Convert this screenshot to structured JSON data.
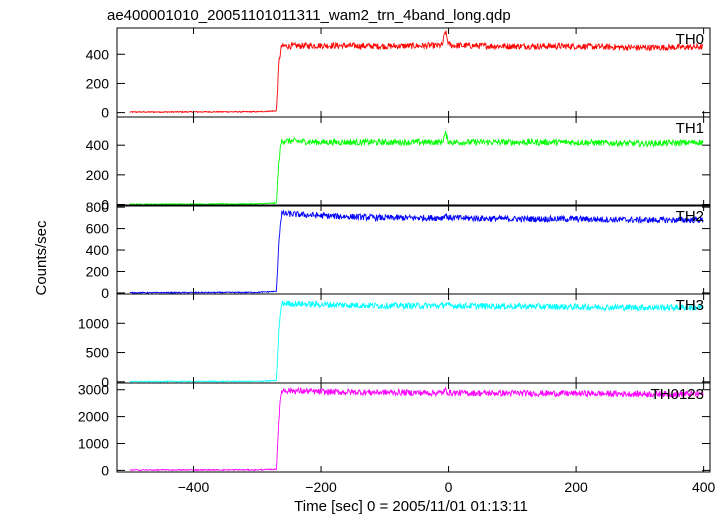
{
  "chart_data": {
    "type": "line",
    "title": "ae400001010_20051101011311_wam2_trn_4band_long.qdp",
    "xlabel": "Time [sec] 0 = 2005/11/01 01:13:11",
    "ylabel": "Counts/sec",
    "xlim": [
      -520,
      410
    ],
    "x_ticks": [
      -400,
      -200,
      0,
      200,
      400
    ],
    "x_tick_labels": [
      "−400",
      "−200",
      "0",
      "200",
      "400"
    ],
    "grid": false,
    "panels": [
      {
        "name": "TH0",
        "color": "#ff0000",
        "ylim": [
          -30,
          580
        ],
        "y_ticks": [
          0,
          200,
          400
        ],
        "y_tick_labels": [
          "0",
          "200",
          "400"
        ],
        "series": {
          "x": [
            -500,
            -300,
            -270,
            -266,
            -262,
            -200,
            -100,
            -10,
            -5,
            0,
            5,
            100,
            200,
            300,
            400
          ],
          "y": [
            4,
            6,
            12,
            350,
            455,
            460,
            455,
            460,
            560,
            470,
            460,
            455,
            455,
            445,
            450
          ]
        }
      },
      {
        "name": "TH1",
        "color": "#00ff00",
        "ylim": [
          -10,
          590
        ],
        "y_ticks": [
          0,
          200,
          400
        ],
        "y_tick_labels": [
          "0",
          "200",
          "400"
        ],
        "series": {
          "x": [
            -500,
            -300,
            -270,
            -266,
            -262,
            -200,
            -100,
            -10,
            -5,
            0,
            5,
            100,
            200,
            300,
            400
          ],
          "y": [
            2,
            4,
            10,
            300,
            430,
            420,
            420,
            420,
            480,
            425,
            420,
            420,
            420,
            410,
            420
          ]
        }
      },
      {
        "name": "TH2",
        "color": "#0000ff",
        "ylim": [
          -10,
          820
        ],
        "y_ticks": [
          0,
          200,
          400,
          600,
          800
        ],
        "y_tick_labels": [
          "0",
          "200",
          "400",
          "600",
          "800"
        ],
        "series": {
          "x": [
            -500,
            -300,
            -270,
            -266,
            -262,
            -200,
            -100,
            -10,
            -5,
            0,
            5,
            100,
            200,
            300,
            400
          ],
          "y": [
            2,
            5,
            15,
            500,
            740,
            720,
            700,
            700,
            730,
            700,
            700,
            690,
            690,
            680,
            680
          ]
        }
      },
      {
        "name": "TH3",
        "color": "#00ffff",
        "ylim": [
          -20,
          1500
        ],
        "y_ticks": [
          0,
          500,
          1000
        ],
        "y_tick_labels": [
          "0",
          "500",
          "1000"
        ],
        "series": {
          "x": [
            -500,
            -300,
            -270,
            -266,
            -262,
            -200,
            -100,
            -10,
            -5,
            0,
            5,
            100,
            200,
            300,
            400
          ],
          "y": [
            5,
            8,
            20,
            900,
            1340,
            1320,
            1300,
            1300,
            1330,
            1300,
            1300,
            1290,
            1280,
            1270,
            1270
          ]
        }
      },
      {
        "name": "TH0123",
        "color": "#ff00ff",
        "ylim": [
          -60,
          3250
        ],
        "y_ticks": [
          0,
          1000,
          2000,
          3000
        ],
        "y_tick_labels": [
          "0",
          "1000",
          "2000",
          "3000"
        ],
        "series": {
          "x": [
            -500,
            -300,
            -270,
            -266,
            -262,
            -200,
            -100,
            -10,
            -5,
            0,
            5,
            100,
            200,
            300,
            400
          ],
          "y": [
            15,
            20,
            40,
            2000,
            2980,
            2920,
            2900,
            2880,
            2980,
            2900,
            2880,
            2870,
            2860,
            2840,
            2840
          ]
        }
      }
    ]
  }
}
